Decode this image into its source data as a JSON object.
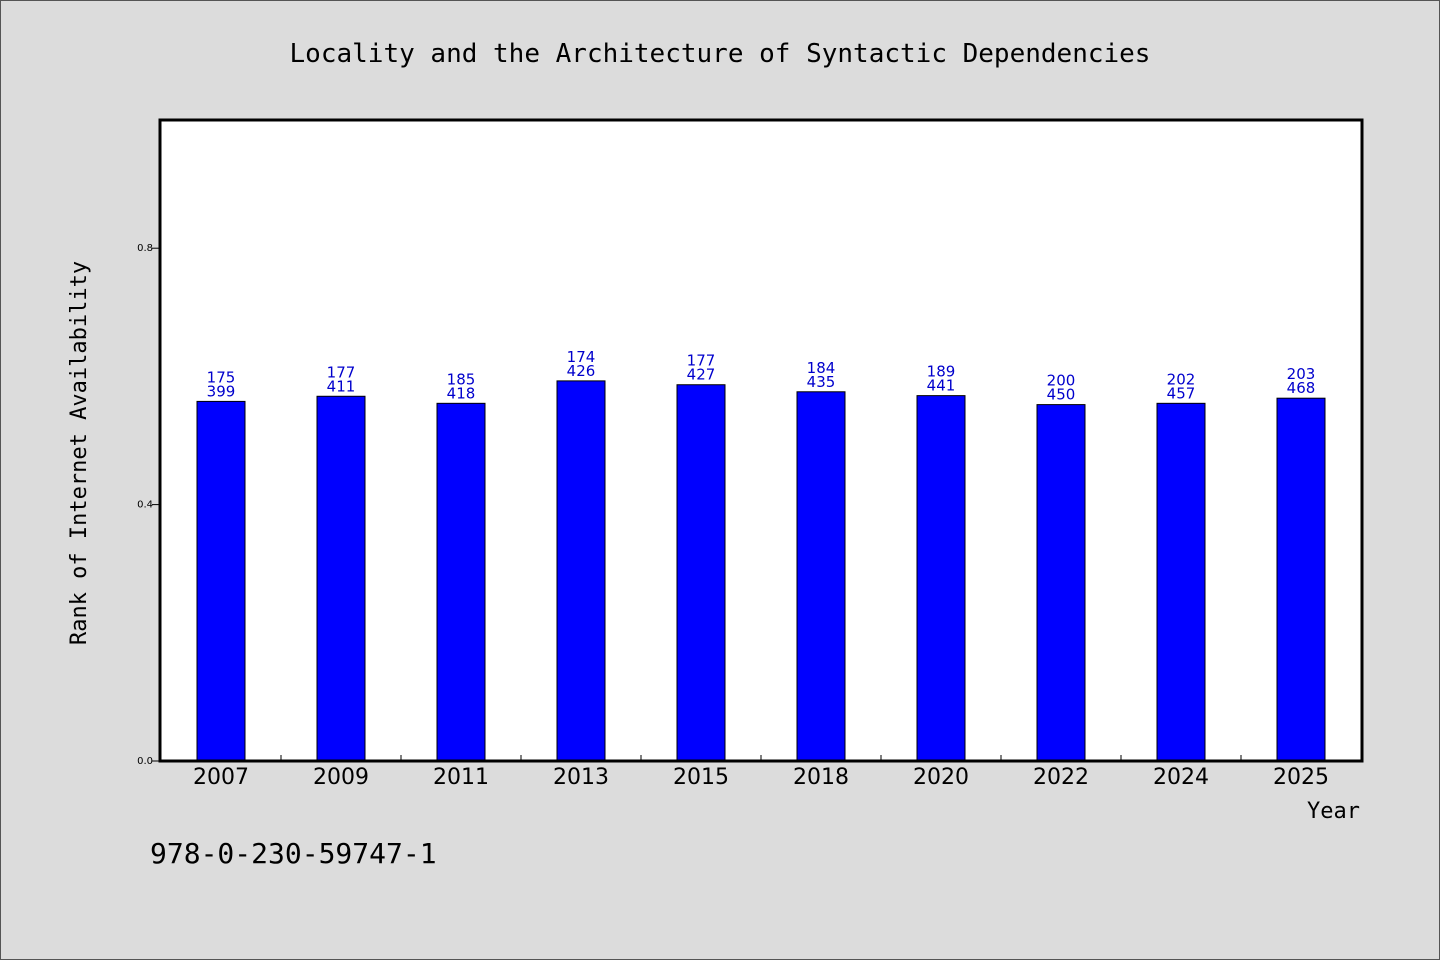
{
  "chart_data": {
    "type": "bar",
    "title": "Locality and the Architecture of Syntactic Dependencies",
    "xlabel": "Year",
    "ylabel": "Rank of Internet Availability",
    "categories": [
      "2007",
      "2009",
      "2011",
      "2013",
      "2015",
      "2018",
      "2020",
      "2022",
      "2024",
      "2025"
    ],
    "series": [
      {
        "values": [
          0.561,
          0.569,
          0.558,
          0.593,
          0.587,
          0.576,
          0.57,
          0.556,
          0.558,
          0.566
        ],
        "color": "#0000ff"
      }
    ],
    "annotations": [
      {
        "top": "175",
        "bottom": "399"
      },
      {
        "top": "177",
        "bottom": "411"
      },
      {
        "top": "185",
        "bottom": "418"
      },
      {
        "top": "174",
        "bottom": "426"
      },
      {
        "top": "177",
        "bottom": "427"
      },
      {
        "top": "184",
        "bottom": "435"
      },
      {
        "top": "189",
        "bottom": "441"
      },
      {
        "top": "200",
        "bottom": "450"
      },
      {
        "top": "202",
        "bottom": "457"
      },
      {
        "top": "203",
        "bottom": "468"
      }
    ],
    "ylim": [
      0,
      1.0
    ],
    "yticks": [
      "0.0",
      "0.4",
      "0.8"
    ],
    "ytick_values": [
      0.0,
      0.4,
      0.8
    ],
    "grid": false,
    "legend": "none"
  },
  "footer": {
    "text": "978-0-230-59747-1"
  },
  "colors": {
    "background": "#dcdcdc",
    "plot_background": "#ffffff",
    "bar": "#0000ff",
    "bar_label": "#0000cc"
  }
}
